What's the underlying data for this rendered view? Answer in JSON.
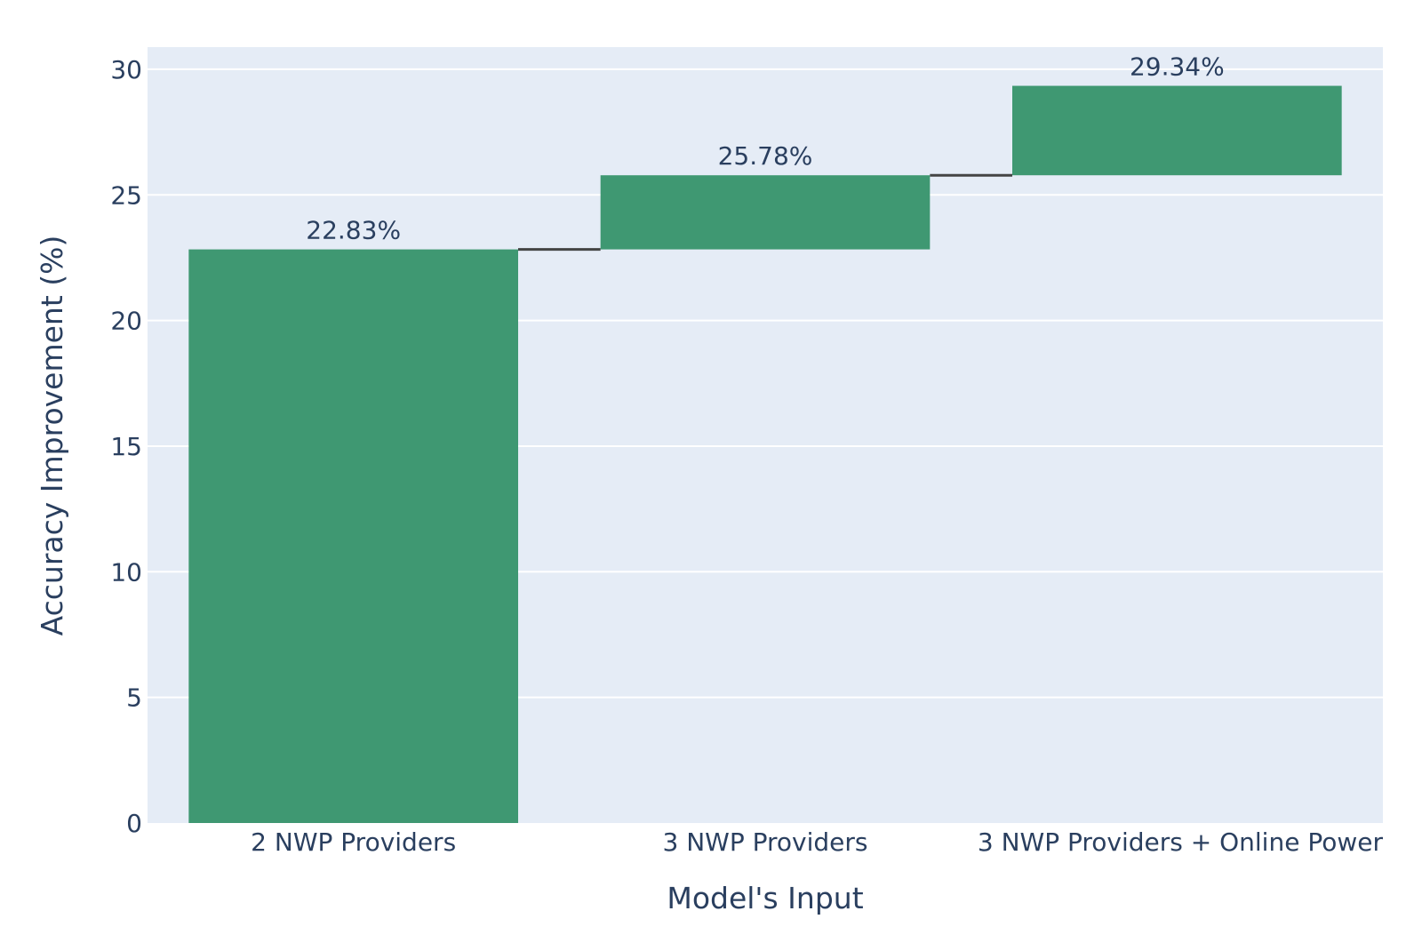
{
  "chart_data": {
    "type": "waterfall",
    "title": "",
    "xlabel": "Model's Input",
    "ylabel": "Accuracy Improvement (%)",
    "categories": [
      "2 NWP Providers",
      "3 NWP Providers",
      "3 NWP Providers + Online Power"
    ],
    "cumulative_values": [
      22.83,
      25.78,
      29.34
    ],
    "increments": [
      22.83,
      2.95,
      3.56
    ],
    "data_labels": [
      "22.83%",
      "25.78%",
      "29.34%"
    ],
    "ylim": [
      0,
      31
    ],
    "yticks": [
      0,
      5,
      10,
      15,
      20,
      25,
      30
    ],
    "ytick_labels": [
      "0",
      "5",
      "10",
      "15",
      "20",
      "25",
      "30"
    ],
    "grid": true,
    "colors": {
      "bar": "#3f9872",
      "connector": "#444444",
      "plot_bg": "#e5ecf6",
      "grid": "#ffffff",
      "text": "#2a3f5f"
    }
  }
}
